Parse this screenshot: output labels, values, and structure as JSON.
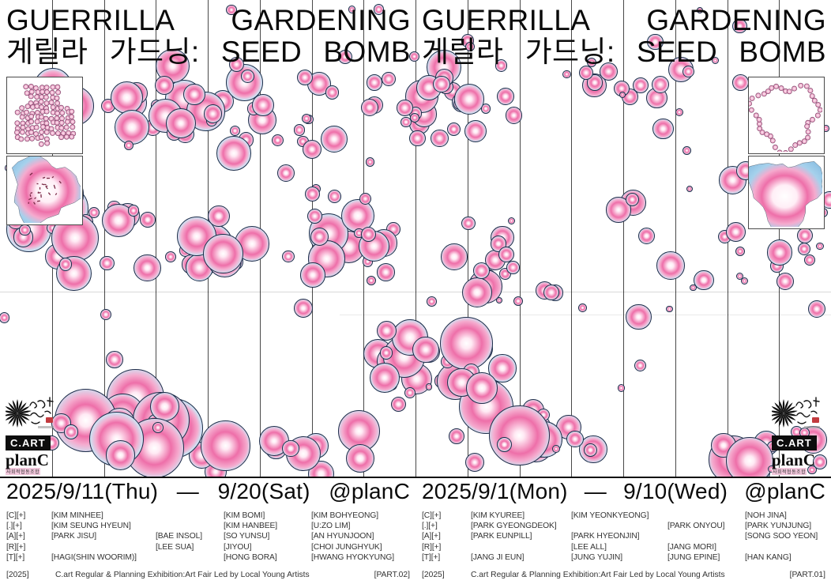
{
  "poster": {
    "title_line1": "GUERRILLA GARDENING",
    "title_line2": "게릴라 가드닝: SEED BOMB",
    "left": {
      "date": "2025/9/11(Thu) — 9/20(Sat) @planC",
      "credits_rows": [
        [
          "[C][+]",
          "[KIM MINHEE]",
          "",
          "[KIM BOMI]",
          "[KIM BOHYEONG]"
        ],
        [
          "[.][+]",
          "[KIM SEUNG HYEUN]",
          "",
          "[KIM HANBEE]",
          "[U:ZO LIM]"
        ],
        [
          "[A][+]",
          "[PARK JISU]",
          "[BAE INSOL]",
          "[SO YUNSU]",
          "[AN HYUNJOON]"
        ],
        [
          "[R][+]",
          "",
          "[LEE SUA]",
          "[JIYOU]",
          "[CHOI JUNGHYUK]"
        ],
        [
          "[T][+]",
          "[HAGI(SHIN WOORIM)]",
          "",
          "[HONG BORA]",
          "[HWANG HYOKYUNG]"
        ]
      ],
      "footer": {
        "year": "[2025]",
        "text": "C.art Regular & Planning Exhibition:Art Fair Led by Local Young Artists",
        "part": "[PART.02]"
      }
    },
    "right": {
      "date": "2025/9/1(Mon) — 9/10(Wed) @planC",
      "credits_rows": [
        [
          "[C][+]",
          "[KIM KYUREE]",
          "[KIM YEONKYEONG]",
          "",
          "[NOH JINA]"
        ],
        [
          "[.][+]",
          "[PARK GYEONGDEOK]",
          "",
          "[PARK ONYOU]",
          "[PARK YUNJUNG]"
        ],
        [
          "[A][+]",
          "[PARK EUNPILL]",
          "[PARK HYEONJIN]",
          "",
          "[SONG SOO YEON]"
        ],
        [
          "[R][+]",
          "",
          "[LEE ALL]",
          "[JANG MORI]",
          ""
        ],
        [
          "[T][+]",
          "[JANG JI EUN]",
          "[JUNG YUJIN]",
          "[JUNG EPINE]",
          "[HAN KANG]"
        ]
      ],
      "footer": {
        "year": "[2025]",
        "text": "C.art Regular & Planning Exhibition:Art Fair Led by Local Young Artists",
        "part": "[PART.01]"
      }
    },
    "logos": {
      "cart": "C.ART",
      "planc": "planC",
      "planc_sub": "사회적협동조합"
    },
    "colors": {
      "bubble_outline": "#1d2c49",
      "bubble_pink": "#ee6fa9",
      "bubble_pink_light": "#f5abce",
      "bubble_blue": "#a6d1ec",
      "bubble_blue_light": "#cfe2f3",
      "ink": "#111111",
      "seal_red": "#c23a3e",
      "dot_fill": "#f3bcd6",
      "dot_stroke": "#82446a"
    },
    "art": {
      "bubble_seed": 20250911,
      "panel_seed": 77
    }
  }
}
